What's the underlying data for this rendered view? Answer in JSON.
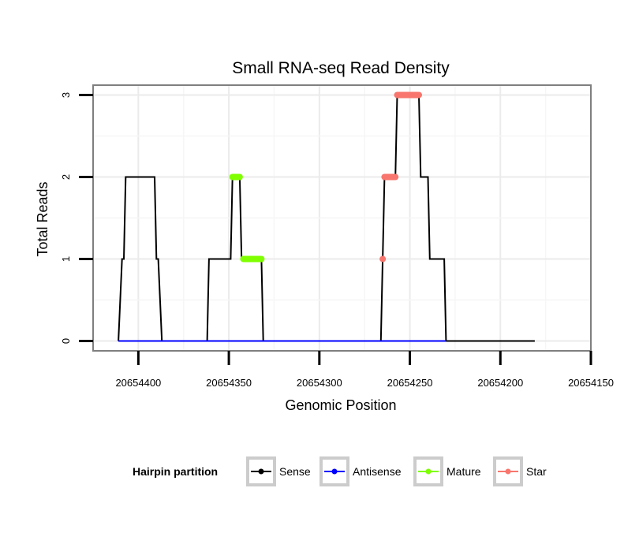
{
  "chart_data": {
    "type": "line",
    "title": "Small RNA-seq Read Density",
    "xlabel": "Genomic Position",
    "ylabel": "Total Reads",
    "x_reversed": true,
    "xlim": [
      20654425,
      20654150
    ],
    "ylim": [
      -0.12,
      3.12
    ],
    "x_ticks": [
      20654400,
      20654350,
      20654300,
      20654250,
      20654200,
      20654150
    ],
    "x_tick_labels": [
      "20654400",
      "20654350",
      "20654300",
      "20654250",
      "20654200",
      "20654150"
    ],
    "y_ticks": [
      0,
      1,
      2,
      3
    ],
    "y_tick_labels": [
      "0",
      "1",
      "2",
      "3"
    ],
    "grid": true,
    "legend": {
      "title": "Hairpin partition",
      "position": "bottom",
      "entries": [
        "Sense",
        "Antisense",
        "Mature",
        "Star"
      ]
    },
    "series": [
      {
        "name": "Sense",
        "color": "#000000",
        "kind": "line",
        "points": [
          [
            20654411,
            0
          ],
          [
            20654409,
            1
          ],
          [
            20654408,
            1
          ],
          [
            20654407,
            2
          ],
          [
            20654391,
            2
          ],
          [
            20654390,
            1
          ],
          [
            20654389,
            1
          ],
          [
            20654387,
            0
          ],
          [
            20654362,
            0
          ],
          [
            20654361,
            1
          ],
          [
            20654349,
            1
          ],
          [
            20654348,
            2
          ],
          [
            20654344,
            2
          ],
          [
            20654343,
            1
          ],
          [
            20654332,
            1
          ],
          [
            20654331,
            0
          ],
          [
            20654266,
            0
          ],
          [
            20654265,
            1
          ],
          [
            20654264,
            2
          ],
          [
            20654258,
            2
          ],
          [
            20654257,
            3
          ],
          [
            20654245,
            3
          ],
          [
            20654244,
            2
          ],
          [
            20654240,
            2
          ],
          [
            20654239,
            1
          ],
          [
            20654231,
            1
          ],
          [
            20654230,
            0
          ],
          [
            20654181,
            0
          ]
        ]
      },
      {
        "name": "Antisense",
        "color": "#0000ff",
        "kind": "line",
        "points": [
          [
            20654411,
            0
          ],
          [
            20654230,
            0
          ]
        ]
      },
      {
        "name": "Mature",
        "color": "#7fff00",
        "kind": "points",
        "segments": [
          {
            "x_from": 20654348,
            "x_to": 20654344,
            "y": 2
          },
          {
            "x_from": 20654342,
            "x_to": 20654332,
            "y": 1
          }
        ]
      },
      {
        "name": "Star",
        "color": "#f8766d",
        "kind": "points",
        "segments": [
          {
            "x_from": 20654265,
            "x_to": 20654265,
            "y": 1
          },
          {
            "x_from": 20654264,
            "x_to": 20654258,
            "y": 2
          },
          {
            "x_from": 20654257,
            "x_to": 20654245,
            "y": 3
          }
        ]
      }
    ]
  }
}
